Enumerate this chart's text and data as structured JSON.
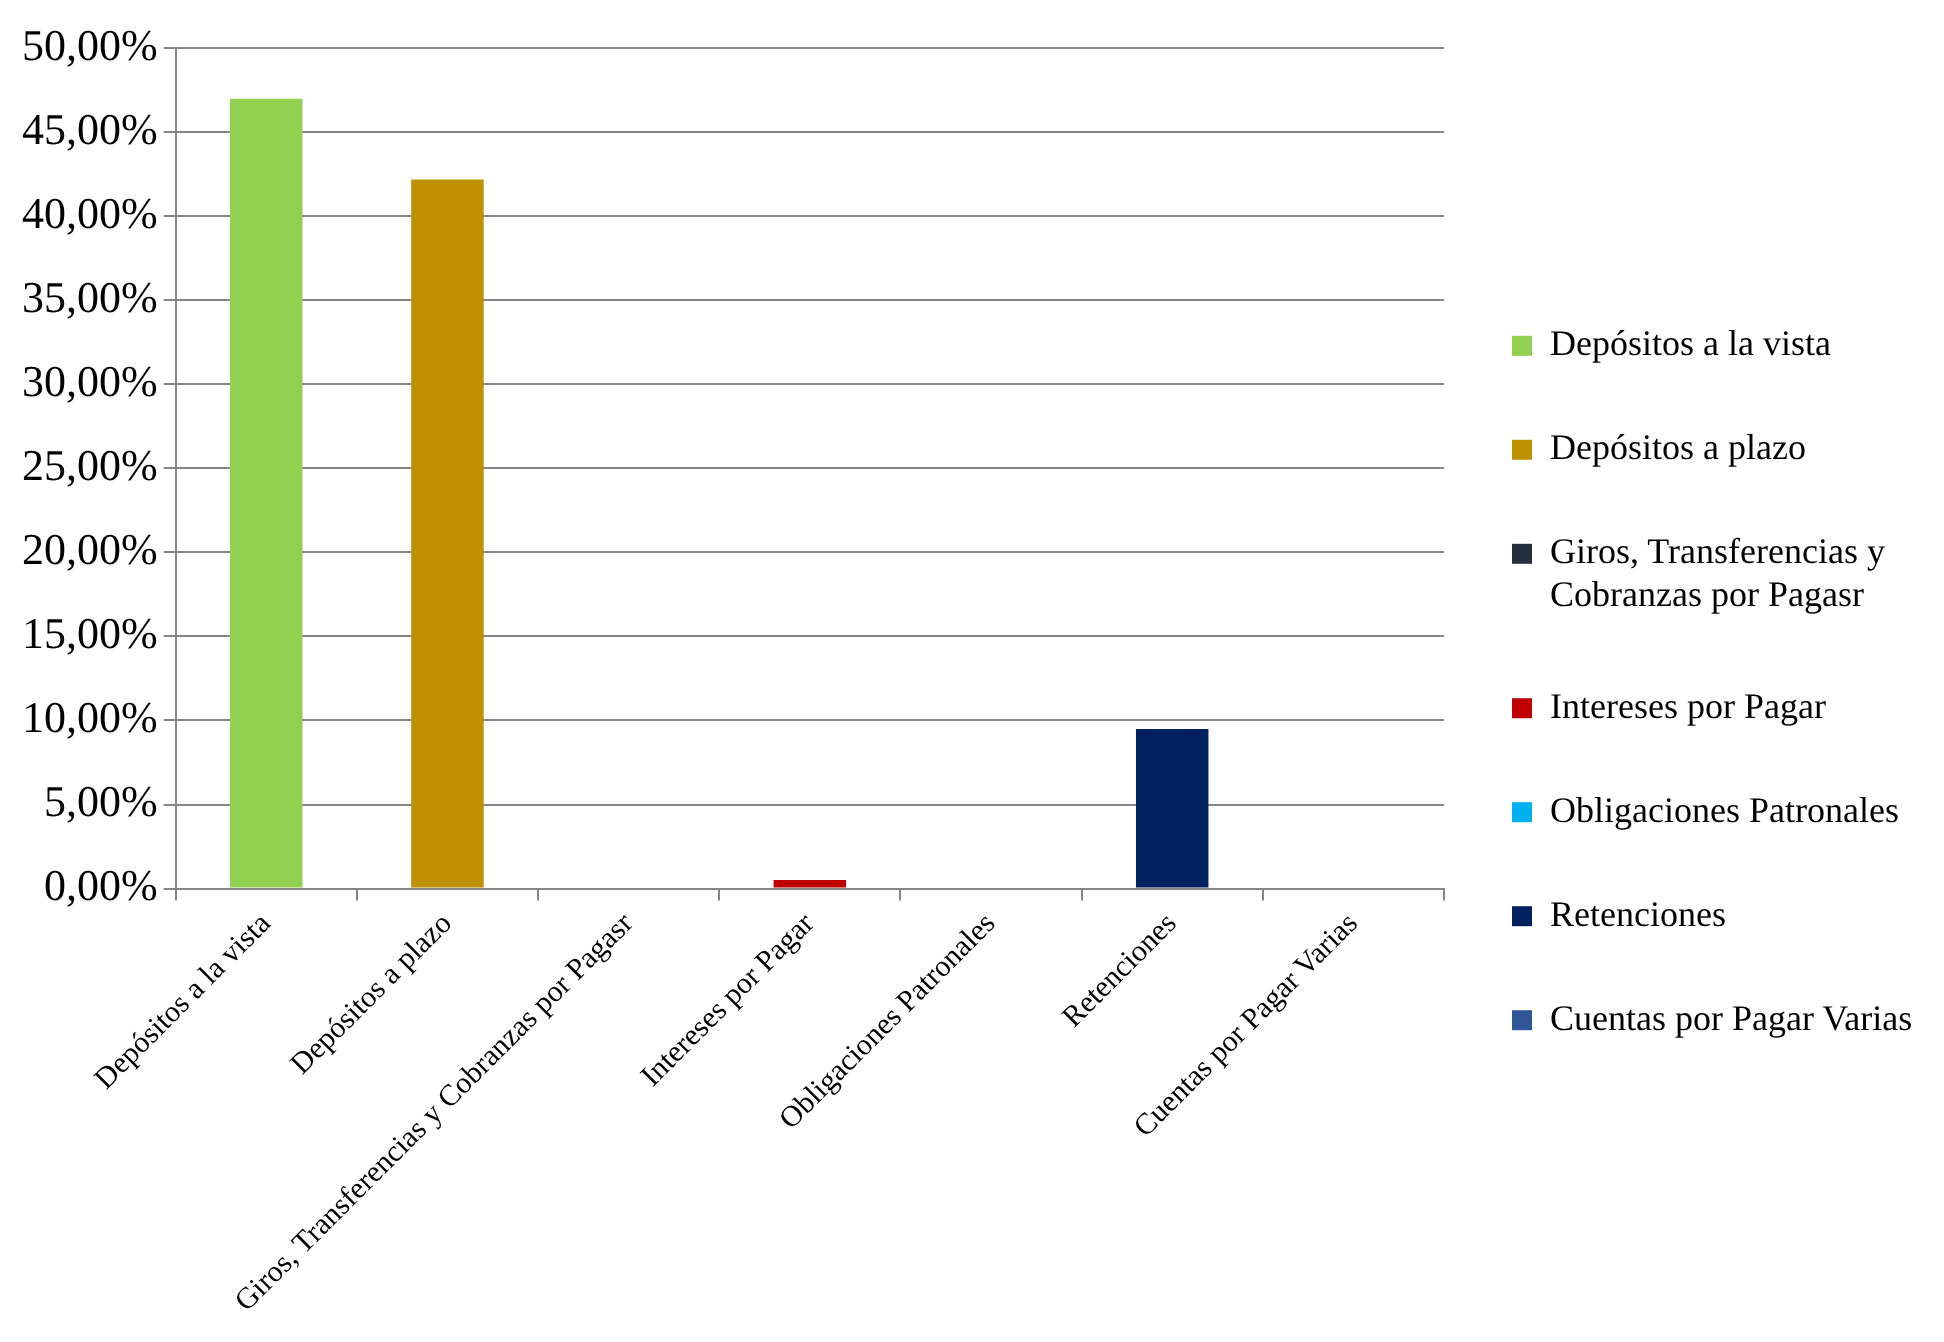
{
  "chart_data": {
    "type": "bar",
    "categories": [
      "Depósitos a la vista",
      "Depósitos a plazo",
      "Giros, Transferencias y Cobranzas por Pagasr",
      "Intereses por Pagar",
      "Obligaciones Patronales",
      "Retenciones",
      "Cuentas por Pagar Varias"
    ],
    "series": [
      {
        "name": "Depósitos a la vista",
        "color": "#92d050",
        "values": [
          47.0,
          null,
          null,
          null,
          null,
          null,
          null
        ]
      },
      {
        "name": "Depósitos a plazo",
        "color": "#bf9000",
        "values": [
          null,
          42.2,
          null,
          null,
          null,
          null,
          null
        ]
      },
      {
        "name": "Giros, Transferencias y Cobranzas por Pagasr",
        "color": "#262f3d",
        "values": [
          null,
          null,
          0,
          null,
          null,
          null,
          null
        ]
      },
      {
        "name": "Intereses por Pagar",
        "color": "#c00000",
        "values": [
          null,
          null,
          null,
          0.5,
          null,
          null,
          null
        ]
      },
      {
        "name": "Obligaciones Patronales",
        "color": "#00b0f0",
        "values": [
          null,
          null,
          null,
          null,
          0,
          null,
          null
        ]
      },
      {
        "name": "Retenciones",
        "color": "#002060",
        "values": [
          null,
          null,
          null,
          null,
          null,
          9.5,
          null
        ]
      },
      {
        "name": "Cuentas por Pagar Varias",
        "color": "#2f5597",
        "values": [
          null,
          null,
          null,
          null,
          null,
          null,
          0
        ]
      }
    ],
    "ylim": [
      0,
      50
    ],
    "yticks": [
      {
        "value": 0,
        "label": "0,00%"
      },
      {
        "value": 5,
        "label": "5,00%"
      },
      {
        "value": 10,
        "label": "10,00%"
      },
      {
        "value": 15,
        "label": "15,00%"
      },
      {
        "value": 20,
        "label": "20,00%"
      },
      {
        "value": 25,
        "label": "25,00%"
      },
      {
        "value": 30,
        "label": "30,00%"
      },
      {
        "value": 35,
        "label": "35,00%"
      },
      {
        "value": 40,
        "label": "40,00%"
      },
      {
        "value": 45,
        "label": "45,00%"
      },
      {
        "value": 50,
        "label": "50,00%"
      }
    ],
    "grid": "y",
    "legend": "right"
  }
}
